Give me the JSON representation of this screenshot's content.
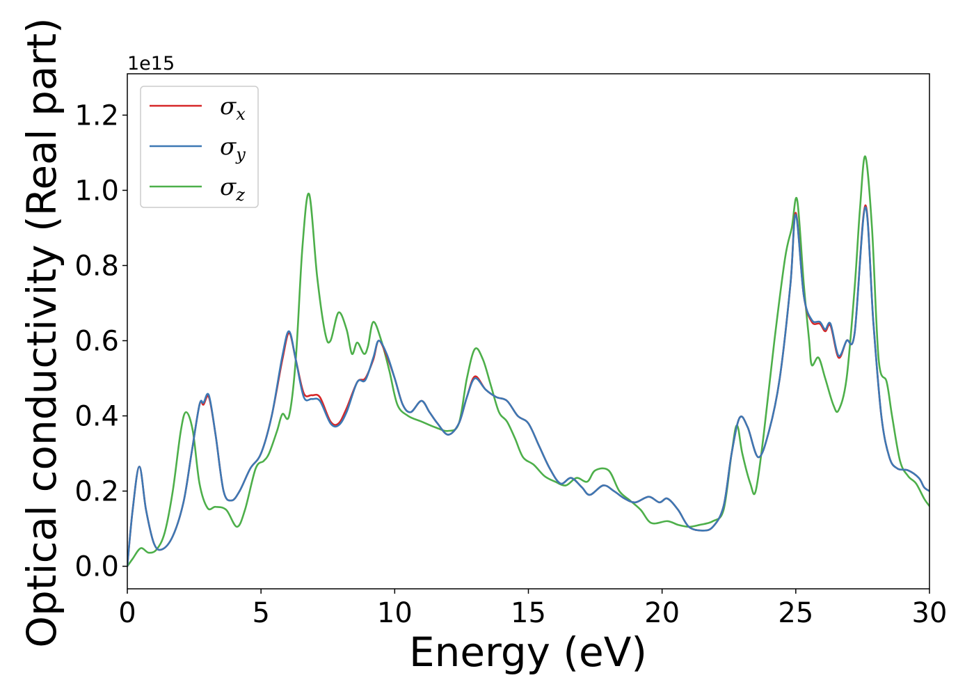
{
  "chart_data": {
    "type": "line",
    "xlabel": "Energy (eV)",
    "ylabel": "Optical conductivity (Real part)",
    "y_offset_label": "1e15",
    "y_scale": 1000000000000000.0,
    "xlim": [
      0,
      30
    ],
    "ylim": [
      -0.06,
      1.31
    ],
    "x_ticks": [
      0,
      5,
      10,
      15,
      20,
      25,
      30
    ],
    "x_tick_labels": [
      "0",
      "5",
      "10",
      "15",
      "20",
      "25",
      "30"
    ],
    "y_ticks": [
      0.0,
      0.2,
      0.4,
      0.6,
      0.8,
      1.0,
      1.2
    ],
    "y_tick_labels": [
      "0.0",
      "0.2",
      "0.4",
      "0.6",
      "0.8",
      "1.0",
      "1.2"
    ],
    "grid": false,
    "legend_position": "top-left",
    "series": [
      {
        "name": "σx",
        "symbol": "σ",
        "subscript": "x",
        "color": "#d62728",
        "points": [
          [
            0,
            0
          ],
          [
            0.2,
            0.15
          ],
          [
            0.45,
            0.265
          ],
          [
            0.7,
            0.15
          ],
          [
            1.0,
            0.06
          ],
          [
            1.3,
            0.045
          ],
          [
            1.7,
            0.08
          ],
          [
            2.1,
            0.17
          ],
          [
            2.4,
            0.3
          ],
          [
            2.7,
            0.43
          ],
          [
            2.85,
            0.43
          ],
          [
            3.05,
            0.45
          ],
          [
            3.3,
            0.35
          ],
          [
            3.6,
            0.2
          ],
          [
            3.9,
            0.175
          ],
          [
            4.2,
            0.2
          ],
          [
            4.6,
            0.26
          ],
          [
            5.0,
            0.3
          ],
          [
            5.4,
            0.4
          ],
          [
            5.8,
            0.55
          ],
          [
            6.05,
            0.62
          ],
          [
            6.3,
            0.55
          ],
          [
            6.6,
            0.46
          ],
          [
            6.9,
            0.455
          ],
          [
            7.2,
            0.45
          ],
          [
            7.6,
            0.385
          ],
          [
            7.9,
            0.38
          ],
          [
            8.2,
            0.42
          ],
          [
            8.6,
            0.49
          ],
          [
            8.9,
            0.5
          ],
          [
            9.2,
            0.55
          ],
          [
            9.4,
            0.6
          ],
          [
            9.7,
            0.56
          ],
          [
            10.0,
            0.5
          ],
          [
            10.3,
            0.43
          ],
          [
            10.6,
            0.41
          ],
          [
            11.0,
            0.44
          ],
          [
            11.3,
            0.41
          ],
          [
            11.6,
            0.38
          ],
          [
            12.0,
            0.35
          ],
          [
            12.4,
            0.38
          ],
          [
            12.7,
            0.45
          ],
          [
            13.0,
            0.505
          ],
          [
            13.4,
            0.47
          ],
          [
            13.8,
            0.45
          ],
          [
            14.2,
            0.44
          ],
          [
            14.6,
            0.4
          ],
          [
            15.0,
            0.38
          ],
          [
            15.4,
            0.32
          ],
          [
            15.8,
            0.26
          ],
          [
            16.2,
            0.22
          ],
          [
            16.6,
            0.235
          ],
          [
            17.0,
            0.21
          ],
          [
            17.3,
            0.19
          ],
          [
            17.8,
            0.215
          ],
          [
            18.2,
            0.2
          ],
          [
            18.6,
            0.18
          ],
          [
            19.0,
            0.17
          ],
          [
            19.5,
            0.185
          ],
          [
            19.9,
            0.17
          ],
          [
            20.2,
            0.18
          ],
          [
            20.6,
            0.15
          ],
          [
            21.0,
            0.105
          ],
          [
            21.5,
            0.095
          ],
          [
            21.9,
            0.105
          ],
          [
            22.3,
            0.16
          ],
          [
            22.6,
            0.3
          ],
          [
            22.9,
            0.395
          ],
          [
            23.2,
            0.37
          ],
          [
            23.6,
            0.29
          ],
          [
            24.0,
            0.36
          ],
          [
            24.4,
            0.5
          ],
          [
            24.8,
            0.75
          ],
          [
            25.0,
            0.94
          ],
          [
            25.3,
            0.72
          ],
          [
            25.6,
            0.65
          ],
          [
            25.9,
            0.645
          ],
          [
            26.1,
            0.625
          ],
          [
            26.3,
            0.64
          ],
          [
            26.6,
            0.555
          ],
          [
            26.9,
            0.6
          ],
          [
            27.2,
            0.62
          ],
          [
            27.6,
            0.96
          ],
          [
            27.9,
            0.65
          ],
          [
            28.2,
            0.4
          ],
          [
            28.5,
            0.29
          ],
          [
            28.8,
            0.26
          ],
          [
            29.2,
            0.255
          ],
          [
            29.6,
            0.235
          ],
          [
            29.8,
            0.21
          ],
          [
            30.0,
            0.2
          ]
        ]
      },
      {
        "name": "σy",
        "symbol": "σ",
        "subscript": "y",
        "color": "#3c78b4",
        "points": [
          [
            0,
            0
          ],
          [
            0.2,
            0.15
          ],
          [
            0.45,
            0.265
          ],
          [
            0.7,
            0.15
          ],
          [
            1.0,
            0.06
          ],
          [
            1.3,
            0.045
          ],
          [
            1.7,
            0.08
          ],
          [
            2.1,
            0.17
          ],
          [
            2.4,
            0.3
          ],
          [
            2.7,
            0.43
          ],
          [
            2.85,
            0.435
          ],
          [
            3.05,
            0.455
          ],
          [
            3.3,
            0.35
          ],
          [
            3.6,
            0.2
          ],
          [
            3.9,
            0.175
          ],
          [
            4.2,
            0.2
          ],
          [
            4.6,
            0.26
          ],
          [
            5.0,
            0.3
          ],
          [
            5.4,
            0.4
          ],
          [
            5.8,
            0.56
          ],
          [
            6.05,
            0.625
          ],
          [
            6.3,
            0.55
          ],
          [
            6.6,
            0.45
          ],
          [
            6.9,
            0.445
          ],
          [
            7.2,
            0.44
          ],
          [
            7.6,
            0.38
          ],
          [
            7.9,
            0.375
          ],
          [
            8.2,
            0.41
          ],
          [
            8.6,
            0.49
          ],
          [
            8.9,
            0.495
          ],
          [
            9.2,
            0.555
          ],
          [
            9.4,
            0.6
          ],
          [
            9.7,
            0.565
          ],
          [
            10.0,
            0.5
          ],
          [
            10.3,
            0.43
          ],
          [
            10.6,
            0.41
          ],
          [
            11.0,
            0.44
          ],
          [
            11.3,
            0.41
          ],
          [
            11.6,
            0.38
          ],
          [
            12.0,
            0.35
          ],
          [
            12.4,
            0.38
          ],
          [
            12.7,
            0.45
          ],
          [
            13.0,
            0.5
          ],
          [
            13.4,
            0.47
          ],
          [
            13.8,
            0.45
          ],
          [
            14.2,
            0.44
          ],
          [
            14.6,
            0.4
          ],
          [
            15.0,
            0.38
          ],
          [
            15.4,
            0.32
          ],
          [
            15.8,
            0.26
          ],
          [
            16.2,
            0.22
          ],
          [
            16.6,
            0.235
          ],
          [
            17.0,
            0.21
          ],
          [
            17.3,
            0.19
          ],
          [
            17.8,
            0.215
          ],
          [
            18.2,
            0.2
          ],
          [
            18.6,
            0.18
          ],
          [
            19.0,
            0.17
          ],
          [
            19.5,
            0.185
          ],
          [
            19.9,
            0.17
          ],
          [
            20.2,
            0.18
          ],
          [
            20.6,
            0.15
          ],
          [
            21.0,
            0.105
          ],
          [
            21.5,
            0.095
          ],
          [
            21.9,
            0.105
          ],
          [
            22.3,
            0.16
          ],
          [
            22.6,
            0.3
          ],
          [
            22.9,
            0.395
          ],
          [
            23.2,
            0.37
          ],
          [
            23.6,
            0.29
          ],
          [
            24.0,
            0.36
          ],
          [
            24.4,
            0.5
          ],
          [
            24.8,
            0.75
          ],
          [
            25.0,
            0.935
          ],
          [
            25.3,
            0.72
          ],
          [
            25.6,
            0.655
          ],
          [
            25.9,
            0.65
          ],
          [
            26.1,
            0.63
          ],
          [
            26.3,
            0.645
          ],
          [
            26.6,
            0.56
          ],
          [
            26.9,
            0.6
          ],
          [
            27.2,
            0.62
          ],
          [
            27.6,
            0.955
          ],
          [
            27.9,
            0.65
          ],
          [
            28.2,
            0.4
          ],
          [
            28.5,
            0.29
          ],
          [
            28.8,
            0.26
          ],
          [
            29.2,
            0.255
          ],
          [
            29.6,
            0.235
          ],
          [
            29.8,
            0.21
          ],
          [
            30.0,
            0.2
          ]
        ]
      },
      {
        "name": "σz",
        "symbol": "σ",
        "subscript": "z",
        "color": "#4daf4a",
        "points": [
          [
            0,
            0
          ],
          [
            0.2,
            0.02
          ],
          [
            0.5,
            0.048
          ],
          [
            0.8,
            0.036
          ],
          [
            1.1,
            0.045
          ],
          [
            1.4,
            0.09
          ],
          [
            1.7,
            0.2
          ],
          [
            2.0,
            0.36
          ],
          [
            2.2,
            0.41
          ],
          [
            2.45,
            0.36
          ],
          [
            2.7,
            0.22
          ],
          [
            3.0,
            0.155
          ],
          [
            3.3,
            0.158
          ],
          [
            3.7,
            0.15
          ],
          [
            4.1,
            0.105
          ],
          [
            4.4,
            0.15
          ],
          [
            4.8,
            0.26
          ],
          [
            5.1,
            0.28
          ],
          [
            5.3,
            0.3
          ],
          [
            5.6,
            0.36
          ],
          [
            5.8,
            0.405
          ],
          [
            6.05,
            0.4
          ],
          [
            6.3,
            0.55
          ],
          [
            6.55,
            0.85
          ],
          [
            6.8,
            0.99
          ],
          [
            7.1,
            0.77
          ],
          [
            7.4,
            0.62
          ],
          [
            7.6,
            0.6
          ],
          [
            7.9,
            0.675
          ],
          [
            8.2,
            0.63
          ],
          [
            8.4,
            0.565
          ],
          [
            8.6,
            0.595
          ],
          [
            8.85,
            0.565
          ],
          [
            9.0,
            0.585
          ],
          [
            9.2,
            0.65
          ],
          [
            9.5,
            0.6
          ],
          [
            9.8,
            0.52
          ],
          [
            10.1,
            0.43
          ],
          [
            10.5,
            0.4
          ],
          [
            11.0,
            0.385
          ],
          [
            11.5,
            0.37
          ],
          [
            12.0,
            0.36
          ],
          [
            12.4,
            0.38
          ],
          [
            12.7,
            0.5
          ],
          [
            13.0,
            0.578
          ],
          [
            13.3,
            0.55
          ],
          [
            13.6,
            0.48
          ],
          [
            13.9,
            0.41
          ],
          [
            14.2,
            0.385
          ],
          [
            14.5,
            0.34
          ],
          [
            14.8,
            0.29
          ],
          [
            15.2,
            0.27
          ],
          [
            15.6,
            0.24
          ],
          [
            16.0,
            0.225
          ],
          [
            16.4,
            0.215
          ],
          [
            16.8,
            0.235
          ],
          [
            17.2,
            0.225
          ],
          [
            17.5,
            0.255
          ],
          [
            18.0,
            0.255
          ],
          [
            18.4,
            0.2
          ],
          [
            18.8,
            0.175
          ],
          [
            19.2,
            0.15
          ],
          [
            19.6,
            0.115
          ],
          [
            20.2,
            0.12
          ],
          [
            20.6,
            0.11
          ],
          [
            21.0,
            0.105
          ],
          [
            21.4,
            0.11
          ],
          [
            21.9,
            0.12
          ],
          [
            22.3,
            0.15
          ],
          [
            22.6,
            0.3
          ],
          [
            22.8,
            0.375
          ],
          [
            23.0,
            0.3
          ],
          [
            23.3,
            0.22
          ],
          [
            23.5,
            0.2
          ],
          [
            23.8,
            0.35
          ],
          [
            24.2,
            0.6
          ],
          [
            24.6,
            0.82
          ],
          [
            24.85,
            0.9
          ],
          [
            25.05,
            0.975
          ],
          [
            25.3,
            0.75
          ],
          [
            25.5,
            0.6
          ],
          [
            25.6,
            0.535
          ],
          [
            25.85,
            0.555
          ],
          [
            26.1,
            0.5
          ],
          [
            26.4,
            0.43
          ],
          [
            26.6,
            0.415
          ],
          [
            26.9,
            0.5
          ],
          [
            27.2,
            0.74
          ],
          [
            27.4,
            0.95
          ],
          [
            27.6,
            1.09
          ],
          [
            27.85,
            0.9
          ],
          [
            28.1,
            0.55
          ],
          [
            28.4,
            0.49
          ],
          [
            28.6,
            0.4
          ],
          [
            28.9,
            0.28
          ],
          [
            29.2,
            0.24
          ],
          [
            29.5,
            0.22
          ],
          [
            29.8,
            0.18
          ],
          [
            30.0,
            0.16
          ]
        ]
      }
    ]
  }
}
